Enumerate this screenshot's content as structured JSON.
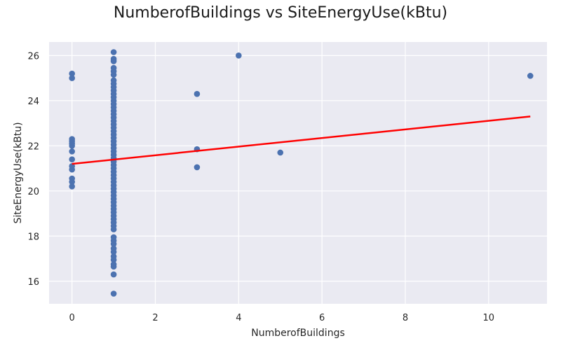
{
  "chart_data": {
    "type": "scatter",
    "title": "NumberofBuildings vs SiteEnergyUse(kBtu)",
    "xlabel": "NumberofBuildings",
    "ylabel": "SiteEnergyUse(kBtu)",
    "xlim": [
      -0.55,
      11.4
    ],
    "ylim": [
      15.0,
      26.6
    ],
    "xticks": [
      0,
      2,
      4,
      6,
      8,
      10
    ],
    "yticks": [
      16,
      18,
      20,
      22,
      24,
      26
    ],
    "grid": true,
    "background": "#EAEAF2",
    "point_color": "#4C72B0",
    "fit_line_color": "#FF0000",
    "points": [
      [
        0,
        25.2
      ],
      [
        0,
        25.0
      ],
      [
        0,
        22.3
      ],
      [
        0,
        22.2
      ],
      [
        0,
        22.1
      ],
      [
        0,
        22.0
      ],
      [
        0,
        21.75
      ],
      [
        0,
        21.4
      ],
      [
        0,
        21.1
      ],
      [
        0,
        20.95
      ],
      [
        0,
        20.55
      ],
      [
        0,
        20.4
      ],
      [
        0,
        20.2
      ],
      [
        1,
        26.15
      ],
      [
        1,
        25.85
      ],
      [
        1,
        25.75
      ],
      [
        1,
        25.45
      ],
      [
        1,
        25.3
      ],
      [
        1,
        25.15
      ],
      [
        1,
        24.9
      ],
      [
        1,
        24.75
      ],
      [
        1,
        24.6
      ],
      [
        1,
        24.45
      ],
      [
        1,
        24.3
      ],
      [
        1,
        24.15
      ],
      [
        1,
        24.0
      ],
      [
        1,
        23.85
      ],
      [
        1,
        23.7
      ],
      [
        1,
        23.55
      ],
      [
        1,
        23.4
      ],
      [
        1,
        23.25
      ],
      [
        1,
        23.1
      ],
      [
        1,
        22.95
      ],
      [
        1,
        22.8
      ],
      [
        1,
        22.65
      ],
      [
        1,
        22.5
      ],
      [
        1,
        22.35
      ],
      [
        1,
        22.2
      ],
      [
        1,
        22.05
      ],
      [
        1,
        21.9
      ],
      [
        1,
        21.75
      ],
      [
        1,
        21.6
      ],
      [
        1,
        21.45
      ],
      [
        1,
        21.3
      ],
      [
        1,
        21.15
      ],
      [
        1,
        21.0
      ],
      [
        1,
        20.85
      ],
      [
        1,
        20.7
      ],
      [
        1,
        20.55
      ],
      [
        1,
        20.4
      ],
      [
        1,
        20.25
      ],
      [
        1,
        20.1
      ],
      [
        1,
        19.95
      ],
      [
        1,
        19.8
      ],
      [
        1,
        19.65
      ],
      [
        1,
        19.5
      ],
      [
        1,
        19.35
      ],
      [
        1,
        19.2
      ],
      [
        1,
        19.05
      ],
      [
        1,
        18.9
      ],
      [
        1,
        18.75
      ],
      [
        1,
        18.6
      ],
      [
        1,
        18.45
      ],
      [
        1,
        18.3
      ],
      [
        1,
        17.95
      ],
      [
        1,
        17.8
      ],
      [
        1,
        17.65
      ],
      [
        1,
        17.45
      ],
      [
        1,
        17.3
      ],
      [
        1,
        17.1
      ],
      [
        1,
        16.95
      ],
      [
        1,
        16.75
      ],
      [
        1,
        16.65
      ],
      [
        1,
        16.3
      ],
      [
        1,
        15.45
      ],
      [
        3,
        24.3
      ],
      [
        3,
        21.85
      ],
      [
        3,
        21.05
      ],
      [
        4,
        26.0
      ],
      [
        5,
        21.7
      ],
      [
        11,
        25.1
      ]
    ],
    "fit_line": [
      [
        0,
        21.2
      ],
      [
        11,
        23.3
      ]
    ]
  }
}
